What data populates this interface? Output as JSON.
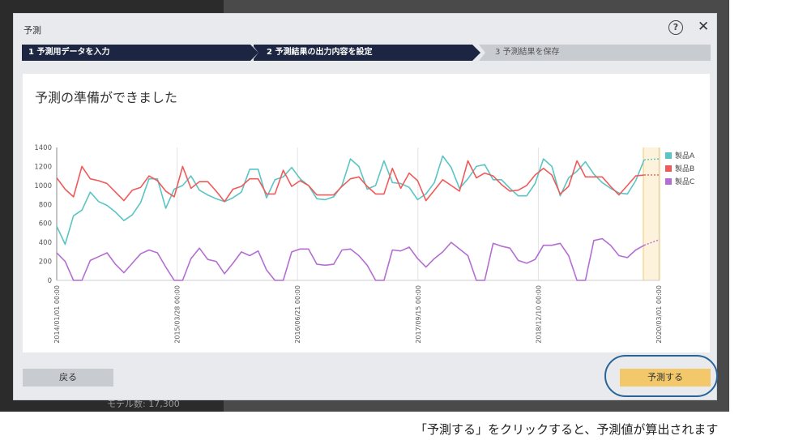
{
  "dialog": {
    "title": "予測",
    "help_glyph": "?",
    "close_glyph": "✕",
    "steps": [
      "1 予測用データを入力",
      "2 予測結果の出力内容を設定",
      "3 予測結果を保存"
    ],
    "heading": "予測の準備ができました",
    "back_label": "戻る",
    "predict_label": "予測する"
  },
  "background": {
    "footer_text": "モデル数: 17,300"
  },
  "caption": "「予測する」をクリックすると、予測値が算出されます",
  "colors": {
    "series_a": "#5bc4c4",
    "series_b": "#f05a5a",
    "series_c": "#b46ed2",
    "forecast_band": "#fdf3dc",
    "accent": "#f2c86a",
    "step_active": "#1c2541"
  },
  "chart_data": {
    "type": "line",
    "ylim": [
      0,
      1400
    ],
    "yticks": [
      0,
      200,
      400,
      600,
      800,
      1000,
      1200,
      1400
    ],
    "xtick_labels": [
      "2014/01/01 00:00",
      "2015/03/28 00:00",
      "2016/06/21 00:00",
      "2017/09/15 00:00",
      "2018/12/10 00:00",
      "2020/03/01 00:00"
    ],
    "grid": "vertical",
    "legend_position": "right",
    "forecast_region": "last period highlighted",
    "series": [
      {
        "name": "製品A",
        "values": [
          570,
          380,
          680,
          740,
          930,
          830,
          790,
          720,
          630,
          690,
          820,
          1070,
          1070,
          760,
          960,
          1000,
          1100,
          950,
          900,
          860,
          830,
          870,
          930,
          1170,
          1170,
          870,
          1060,
          1090,
          1190,
          1070,
          1000,
          860,
          850,
          880,
          1000,
          1280,
          1200,
          960,
          1000,
          1260,
          1030,
          1020,
          980,
          850,
          910,
          1030,
          1310,
          1190,
          970,
          1070,
          1200,
          1220,
          1060,
          1060,
          970,
          890,
          890,
          1020,
          1280,
          1200,
          890,
          1080,
          1150,
          1250,
          1120,
          1030,
          970,
          920,
          910,
          1050,
          1270
        ]
      },
      {
        "name": "製品B",
        "values": [
          1080,
          960,
          880,
          1200,
          1070,
          1050,
          1020,
          930,
          840,
          950,
          980,
          1100,
          1050,
          940,
          880,
          1200,
          970,
          1040,
          1040,
          940,
          830,
          960,
          990,
          1070,
          1070,
          910,
          910,
          1160,
          990,
          1050,
          1000,
          900,
          900,
          900,
          990,
          1070,
          1090,
          990,
          910,
          910,
          1180,
          970,
          1130,
          1050,
          840,
          950,
          1060,
          1000,
          940,
          1260,
          1080,
          1130,
          1100,
          1010,
          940,
          950,
          1000,
          1110,
          1180,
          1110,
          910,
          990,
          1260,
          1090,
          1090,
          1090,
          990,
          900,
          1000,
          1100,
          1110
        ]
      },
      {
        "name": "製品C",
        "values": [
          290,
          200,
          0,
          0,
          210,
          250,
          290,
          170,
          80,
          180,
          280,
          320,
          290,
          140,
          0,
          0,
          230,
          340,
          220,
          200,
          70,
          180,
          300,
          260,
          310,
          110,
          0,
          0,
          300,
          330,
          330,
          170,
          160,
          170,
          320,
          330,
          260,
          160,
          0,
          0,
          320,
          310,
          350,
          230,
          140,
          230,
          300,
          400,
          330,
          260,
          0,
          0,
          390,
          360,
          340,
          210,
          180,
          220,
          370,
          370,
          390,
          260,
          0,
          0,
          420,
          440,
          370,
          260,
          240,
          320,
          370
        ]
      }
    ],
    "forecast_values": {
      "製品A": 1280,
      "製品B": 1110,
      "製品C": 430
    }
  }
}
